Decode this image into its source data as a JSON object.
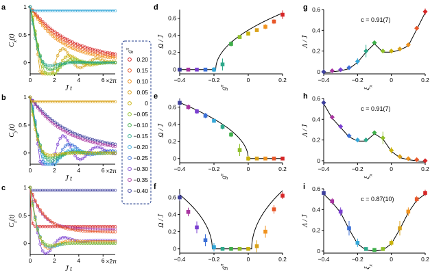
{
  "figure": {
    "legend": {
      "title": "g^π",
      "values": [
        "0.20",
        "0.15",
        "0.10",
        "0.05",
        "0",
        "-0.05",
        "-0.10",
        "-0.15",
        "-0.20",
        "-0.25",
        "-0.30",
        "-0.35",
        "-0.40"
      ],
      "colors": [
        "#d62728",
        "#e8582a",
        "#f0921e",
        "#d9a21a",
        "#c9b20c",
        "#8fbf2a",
        "#3fae4a",
        "#2fa98b",
        "#34a7d8",
        "#3b6fd6",
        "#7a3fd0",
        "#a8349f",
        "#3d3f9c"
      ]
    }
  },
  "chart_data": [
    {
      "id": "a",
      "type": "scatter",
      "panel_letter": "a",
      "ylabel": "C_x(t)",
      "xlabel": "J̄ t",
      "x_unit": "×2π",
      "xlim": [
        0,
        7
      ],
      "ylim": [
        -0.2,
        1
      ],
      "xticks": [
        "0",
        "2",
        "4",
        "6"
      ],
      "yticks": [
        "0",
        "0.5",
        "1"
      ],
      "series_decays": [
        {
          "g": "0.20",
          "decay": 3.2,
          "osc": 0.0,
          "floor": 0.05
        },
        {
          "g": "0.15",
          "decay": 2.8,
          "osc": 0.0,
          "floor": 0.04
        },
        {
          "g": "0.10",
          "decay": 2.4,
          "osc": 0.0,
          "floor": 0.03
        },
        {
          "g": "0.05",
          "decay": 1.9,
          "osc": 0.3,
          "floor": 0.02
        },
        {
          "g": "0",
          "decay": 1.6,
          "osc": 0.6,
          "floor": 0.0
        },
        {
          "g": "-0.05",
          "decay": 1.3,
          "osc": 0.8,
          "floor": 0.0
        },
        {
          "g": "-0.10",
          "decay": 0.9,
          "osc": 1.0,
          "floor": 0.0
        },
        {
          "g": "-0.15",
          "decay": 0.65,
          "osc": 1.1,
          "floor": 0.0
        },
        {
          "g": "-0.20",
          "decay": 0.05,
          "osc": 0.0,
          "floor": 0.93
        }
      ]
    },
    {
      "id": "b",
      "type": "scatter",
      "panel_letter": "b",
      "ylabel": "C_y(t)",
      "xlabel": "J̄ t",
      "x_unit": "×2π",
      "xlim": [
        0,
        7
      ],
      "ylim": [
        -0.2,
        1
      ],
      "xticks": [
        "0",
        "2",
        "4",
        "6"
      ],
      "yticks": [
        "0",
        "0.5",
        "1"
      ],
      "series_decays": [
        {
          "g": "-0.40",
          "decay": 3.2,
          "osc": 0.0,
          "floor": 0.05
        },
        {
          "g": "-0.35",
          "decay": 2.8,
          "osc": 0.0,
          "floor": 0.04
        },
        {
          "g": "-0.30",
          "decay": 2.2,
          "osc": 0.3,
          "floor": 0.03
        },
        {
          "g": "-0.25",
          "decay": 1.7,
          "osc": 0.6,
          "floor": 0.02
        },
        {
          "g": "-0.20",
          "decay": 1.3,
          "osc": 0.8,
          "floor": 0.0
        },
        {
          "g": "-0.15",
          "decay": 1.0,
          "osc": 1.0,
          "floor": 0.0
        },
        {
          "g": "-0.10",
          "decay": 0.8,
          "osc": 1.1,
          "floor": 0.0
        },
        {
          "g": "0",
          "decay": 0.6,
          "osc": 1.2,
          "floor": 0.0
        },
        {
          "g": "0.05",
          "decay": 0.05,
          "osc": 0.0,
          "floor": 0.92
        }
      ]
    },
    {
      "id": "c",
      "type": "scatter",
      "panel_letter": "c",
      "ylabel": "C_z(t)",
      "xlabel": "J̄ t",
      "x_unit": "×2π",
      "xlim": [
        0,
        7
      ],
      "ylim": [
        -0.2,
        1
      ],
      "xticks": [
        "0",
        "2",
        "4",
        "6"
      ],
      "yticks": [
        "0",
        "0.5",
        "1"
      ],
      "series_decays": [
        {
          "g": "-0.40",
          "decay": 0.02,
          "osc": 0.0,
          "floor": 0.95
        },
        {
          "g": "0.20",
          "decay": 0.08,
          "osc": 0.0,
          "floor": 0.3
        },
        {
          "g": "-0.35",
          "decay": 1.0,
          "osc": 0.0,
          "floor": 0.25
        },
        {
          "g": "0.15",
          "decay": 1.2,
          "osc": 0.0,
          "floor": 0.2
        },
        {
          "g": "-0.30",
          "decay": 1.0,
          "osc": 0.4,
          "floor": 0.05
        },
        {
          "g": "0.10",
          "decay": 0.8,
          "osc": 0.8,
          "floor": 0.03
        },
        {
          "g": "-0.20",
          "decay": 0.7,
          "osc": 1.1,
          "floor": 0.0
        },
        {
          "g": "-0.05",
          "decay": 0.6,
          "osc": 1.2,
          "floor": 0.0
        }
      ]
    },
    {
      "id": "d",
      "type": "scatter",
      "panel_letter": "d",
      "ylabel": "Ω / J̄",
      "xlabel": "g^π",
      "xlim": [
        -0.4,
        0.2
      ],
      "ylim": [
        -0.05,
        0.7
      ],
      "xticks": [
        "-0.4",
        "-0.2",
        "0",
        "0.2"
      ],
      "yticks": [
        "0",
        "0.2",
        "0.4",
        "0.6"
      ],
      "x": [
        -0.4,
        -0.35,
        -0.3,
        -0.25,
        -0.2,
        -0.15,
        -0.1,
        -0.05,
        0,
        0.05,
        0.1,
        0.15,
        0.2
      ],
      "y": [
        0,
        0,
        0,
        0,
        0,
        0.06,
        0.3,
        0.38,
        0.42,
        0.46,
        0.5,
        0.56,
        0.64
      ],
      "err": [
        0.01,
        0.01,
        0.01,
        0.01,
        0.03,
        0.07,
        0.03,
        0.02,
        0.02,
        0.02,
        0.03,
        0.03,
        0.05
      ],
      "curve": "sqrt_right",
      "curve_x0": -0.19,
      "curve_k": 0.96
    },
    {
      "id": "e",
      "type": "scatter",
      "panel_letter": "e",
      "ylabel": "Ω / J̄",
      "xlabel": "g^π",
      "xlim": [
        -0.4,
        0.2
      ],
      "ylim": [
        -0.05,
        0.7
      ],
      "xticks": [
        "-0.4",
        "-0.2",
        "0",
        "0.2"
      ],
      "yticks": [
        "0",
        "0.2",
        "0.4",
        "0.6"
      ],
      "x": [
        -0.4,
        -0.35,
        -0.3,
        -0.25,
        -0.2,
        -0.15,
        -0.1,
        -0.05,
        0,
        0.05,
        0.1,
        0.15,
        0.2
      ],
      "y": [
        0.65,
        0.6,
        0.55,
        0.5,
        0.44,
        0.37,
        0.28,
        0.1,
        0,
        0,
        0,
        0,
        0
      ],
      "err": [
        0.04,
        0.03,
        0.03,
        0.03,
        0.02,
        0.03,
        0.03,
        0.07,
        0.03,
        0.01,
        0.01,
        0.01,
        0.01
      ],
      "curve": "sqrt_left",
      "curve_x0": 0.0,
      "curve_k": 1.0
    },
    {
      "id": "f",
      "type": "scatter",
      "panel_letter": "f",
      "ylabel": "Ω / J̄",
      "xlabel": "g^π",
      "xlim": [
        -0.4,
        0.2
      ],
      "ylim": [
        -0.05,
        0.7
      ],
      "xticks": [
        "-0.4",
        "-0.2",
        "0",
        "0.2"
      ],
      "yticks": [
        "0",
        "0.2",
        "0.4",
        "0.6"
      ],
      "x": [
        -0.4,
        -0.35,
        -0.3,
        -0.25,
        -0.2,
        -0.15,
        -0.1,
        -0.05,
        0,
        0.05,
        0.1,
        0.15,
        0.2
      ],
      "y": [
        0.6,
        0.43,
        0.25,
        0.1,
        0.02,
        0,
        0,
        0,
        0,
        0.03,
        0.2,
        0.46,
        0.62
      ],
      "err": [
        0.04,
        0.05,
        0.07,
        0.07,
        0.05,
        0.01,
        0.01,
        0.01,
        0.01,
        0.07,
        0.07,
        0.05,
        0.04
      ],
      "curve": "sqrt_both",
      "curve_x0": -0.21,
      "curve_x1": 0.02,
      "curve_k": 1.0
    },
    {
      "id": "g",
      "type": "scatter",
      "panel_letter": "g",
      "ylabel": "Λ / J̄",
      "xlabel": "ξ_x",
      "annotation": "c = 0.91(7)",
      "xlim": [
        -0.4,
        0.2
      ],
      "ylim": [
        -0.02,
        0.6
      ],
      "xticks": [
        "-0.4",
        "-0.2",
        "0",
        "0.2"
      ],
      "yticks": [
        "0",
        "0.2",
        "0.4",
        "0.6"
      ],
      "x": [
        -0.4,
        -0.35,
        -0.3,
        -0.25,
        -0.2,
        -0.15,
        -0.1,
        -0.05,
        0,
        0.05,
        0.1,
        0.15,
        0.2
      ],
      "y": [
        0.0,
        0.01,
        0.02,
        0.04,
        0.1,
        0.2,
        0.28,
        0.2,
        0.2,
        0.22,
        0.26,
        0.42,
        0.58
      ],
      "err": [
        0.01,
        0.01,
        0.01,
        0.01,
        0.03,
        0.06,
        0.02,
        0.01,
        0.01,
        0.01,
        0.02,
        0.02,
        0.03
      ]
    },
    {
      "id": "h",
      "type": "scatter",
      "panel_letter": "h",
      "ylabel": "Λ / J̄",
      "xlabel": "ξ_x",
      "annotation": "c = 0.91(7)",
      "xlim": [
        -0.4,
        0.2
      ],
      "ylim": [
        -0.02,
        0.6
      ],
      "xticks": [
        "-0.4",
        "-0.2",
        "0",
        "0.2"
      ],
      "yticks": [
        "0",
        "0.2",
        "0.4",
        "0.6"
      ],
      "x": [
        -0.4,
        -0.35,
        -0.3,
        -0.25,
        -0.2,
        -0.15,
        -0.1,
        -0.05,
        0,
        0.05,
        0.1,
        0.15,
        0.2
      ],
      "y": [
        0.56,
        0.42,
        0.33,
        0.24,
        0.2,
        0.2,
        0.27,
        0.22,
        0.1,
        0.04,
        0.02,
        0.01,
        0.0
      ],
      "err": [
        0.03,
        0.02,
        0.02,
        0.01,
        0.01,
        0.02,
        0.02,
        0.06,
        0.03,
        0.01,
        0.01,
        0.01,
        0.01
      ]
    },
    {
      "id": "i",
      "type": "scatter",
      "panel_letter": "i",
      "ylabel": "Λ / J̄",
      "xlabel": "ξ_x",
      "annotation": "c = 0.87(10)",
      "xlim": [
        -0.4,
        0.2
      ],
      "ylim": [
        -0.02,
        0.6
      ],
      "xticks": [
        "-0.4",
        "-0.2",
        "0",
        "0.2"
      ],
      "yticks": [
        "0",
        "0.2",
        "0.4",
        "0.6"
      ],
      "x": [
        -0.4,
        -0.35,
        -0.3,
        -0.25,
        -0.2,
        -0.15,
        -0.1,
        -0.05,
        0,
        0.05,
        0.1,
        0.15,
        0.2
      ],
      "y": [
        0.56,
        0.48,
        0.38,
        0.22,
        0.08,
        0.02,
        0.01,
        0.02,
        0.08,
        0.22,
        0.38,
        0.5,
        0.56
      ],
      "err": [
        0.03,
        0.03,
        0.04,
        0.07,
        0.04,
        0.01,
        0.01,
        0.01,
        0.03,
        0.07,
        0.04,
        0.03,
        0.03
      ]
    }
  ]
}
